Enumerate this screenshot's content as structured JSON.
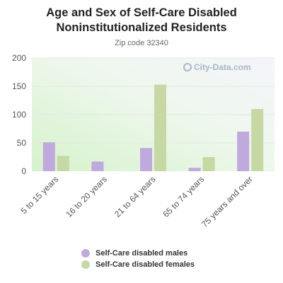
{
  "chart_data": {
    "type": "bar",
    "title_lines": [
      "Age and Sex of Self-Care Disabled",
      "Noninstitutionalized Residents"
    ],
    "subtitle": "Zip code 32340",
    "categories": [
      "5 to 15 years",
      "16 to 20 years",
      "21 to 64 years",
      "65 to 74 years",
      "75 years and over"
    ],
    "series": [
      {
        "name": "Self-Care disabled males",
        "color": "#c0a9dc",
        "values": [
          51,
          17,
          41,
          6,
          70
        ]
      },
      {
        "name": "Self-Care disabled females",
        "color": "#c6d9a5",
        "values": [
          27,
          0,
          153,
          25,
          110
        ]
      }
    ],
    "ylim": [
      0,
      200
    ],
    "yticks": [
      0,
      50,
      100,
      150,
      200
    ],
    "xlabel": "",
    "ylabel": "",
    "grid": true,
    "legend_position": "bottom",
    "watermark": "City-Data.com"
  }
}
